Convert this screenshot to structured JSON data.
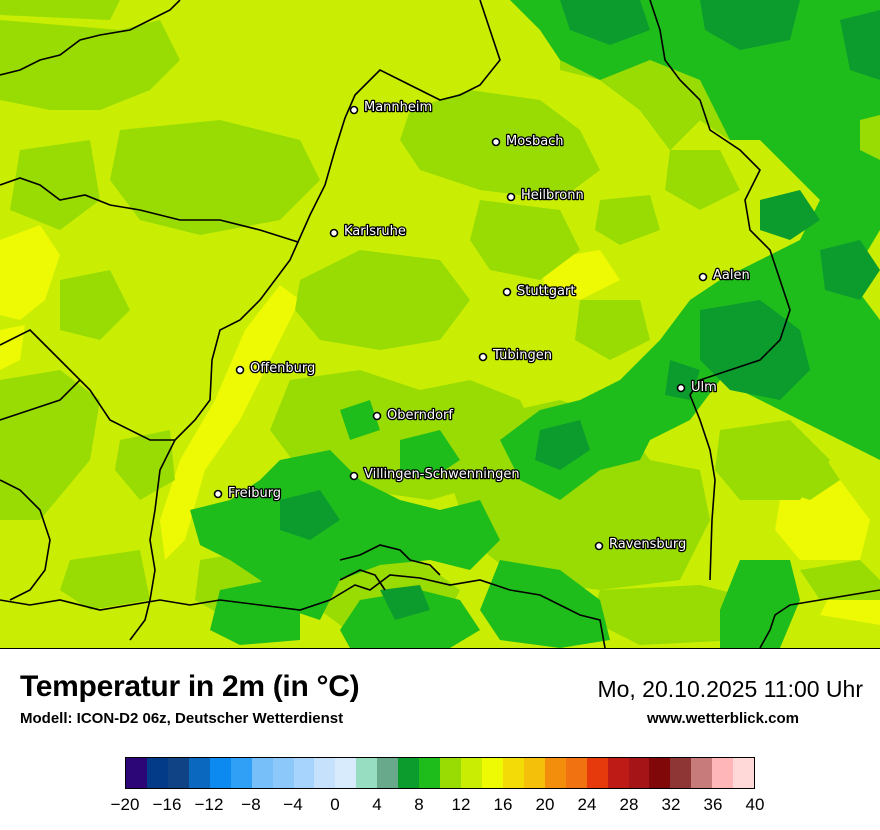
{
  "map": {
    "cities": [
      {
        "name": "Mannheim"
      },
      {
        "name": "Mosbach"
      },
      {
        "name": "Heilbronn"
      },
      {
        "name": "Karlsruhe"
      },
      {
        "name": "Aalen"
      },
      {
        "name": "Stuttgart"
      },
      {
        "name": "Tübingen"
      },
      {
        "name": "Offenburg"
      },
      {
        "name": "Ulm"
      },
      {
        "name": "Oberndorf"
      },
      {
        "name": "Villingen-Schwenningen"
      },
      {
        "name": "Freiburg"
      },
      {
        "name": "Ravensburg"
      }
    ]
  },
  "header": {
    "title": "Temperatur in 2m (in °C)",
    "model": "Modell: ICON-D2 06z, Deutscher Wetterdienst",
    "datetime": "Mo, 20.10.2025 11:00 Uhr",
    "website": "www.wetterblick.com"
  },
  "legend": {
    "colors": [
      "#2c0677",
      "#043b88",
      "#0f4386",
      "#0a68be",
      "#0d8aef",
      "#2fa0f5",
      "#76bff8",
      "#8dc8fb",
      "#a6d4fd",
      "#c6e1fc",
      "#d7ebfd",
      "#96ddc1",
      "#68a98b",
      "#0c9c2e",
      "#1fbd1c",
      "#98dc04",
      "#c9ee04",
      "#eef904",
      "#f3db08",
      "#f4c009",
      "#f38e0d",
      "#f17210",
      "#e73a0c",
      "#be1a16",
      "#a51517",
      "#800809",
      "#8e3535",
      "#c87b7b",
      "#feb6b8",
      "#fed9d8"
    ],
    "ticks": [
      "−20",
      "−16",
      "−12",
      "−8",
      "−4",
      "0",
      "4",
      "8",
      "12",
      "16",
      "20",
      "24",
      "28",
      "32",
      "36",
      "40"
    ]
  }
}
